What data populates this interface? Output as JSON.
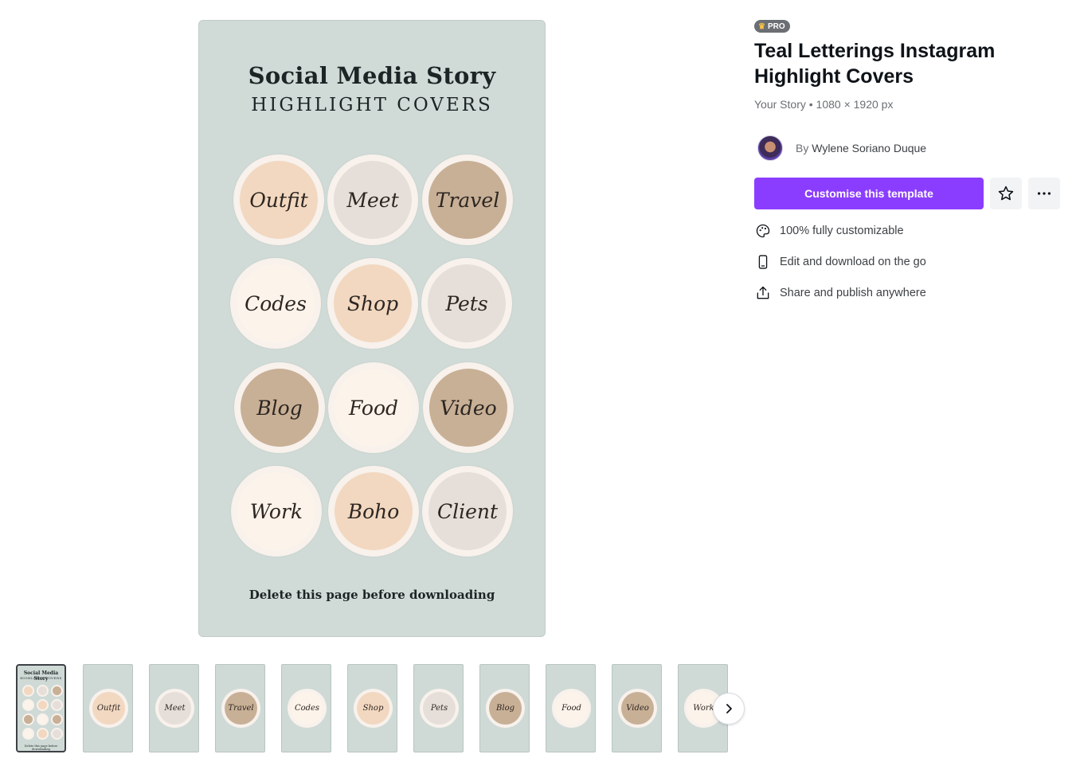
{
  "preview": {
    "title": "Social Media Story",
    "subtitle": "HIGHLIGHT COVERS",
    "note": "Delete this page before downloading",
    "circles": [
      {
        "label": "Outfit",
        "color": "#f2d8c0"
      },
      {
        "label": "Meet",
        "color": "#e6dfd9"
      },
      {
        "label": "Travel",
        "color": "#c8b096"
      },
      {
        "label": "Codes",
        "color": "#fcf4ea"
      },
      {
        "label": "Shop",
        "color": "#f2d8c0"
      },
      {
        "label": "Pets",
        "color": "#e6dfd9"
      },
      {
        "label": "Blog",
        "color": "#c8b096"
      },
      {
        "label": "Food",
        "color": "#fcf4ea"
      },
      {
        "label": "Video",
        "color": "#c8b096"
      },
      {
        "label": "Work",
        "color": "#fcf4ea"
      },
      {
        "label": "Boho",
        "color": "#f2d8c0"
      },
      {
        "label": "Client",
        "color": "#e6dfd9"
      }
    ]
  },
  "thumbnails": [
    {
      "label": "Outfit",
      "color": "#f2d8c0"
    },
    {
      "label": "Meet",
      "color": "#e6dfd9"
    },
    {
      "label": "Travel",
      "color": "#c8b096"
    },
    {
      "label": "Codes",
      "color": "#fcf4ea"
    },
    {
      "label": "Shop",
      "color": "#f2d8c0"
    },
    {
      "label": "Pets",
      "color": "#e6dfd9"
    },
    {
      "label": "Blog",
      "color": "#c8b096"
    },
    {
      "label": "Food",
      "color": "#fcf4ea"
    },
    {
      "label": "Video",
      "color": "#c8b096"
    },
    {
      "label": "Work",
      "color": "#fcf4ea"
    }
  ],
  "badge": {
    "label": "PRO"
  },
  "template": {
    "title": "Teal Letterings Instagram Highlight Covers",
    "meta": "Your Story • 1080 × 1920 px",
    "by_prefix": "By",
    "author": "Wylene Soriano Duque"
  },
  "actions": {
    "customise_label": "Customise this template",
    "accent_color": "#8b3dff"
  },
  "features": [
    {
      "icon": "palette-icon",
      "label": "100% fully customizable"
    },
    {
      "icon": "phone-icon",
      "label": "Edit and download on the go"
    },
    {
      "icon": "share-icon",
      "label": "Share and publish anywhere"
    }
  ]
}
